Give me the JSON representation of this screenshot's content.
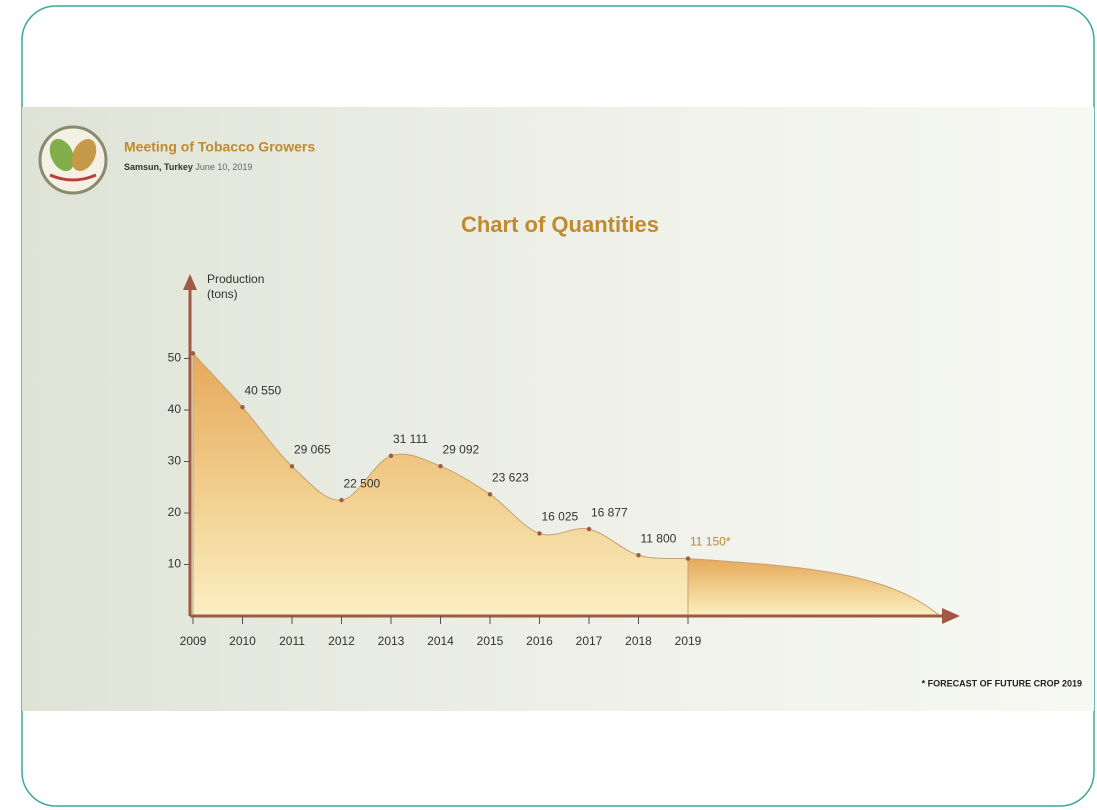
{
  "slide": {
    "heading": "Meeting of Tobacco Growers",
    "place": "Samsun, Turkey",
    "date": "June 10, 2019",
    "footnote": "* FORECAST OF FUTURE CROP 2019"
  },
  "chart_data": {
    "type": "area",
    "title": "Chart of Quantities",
    "ylabel": [
      "Production",
      "(tons)"
    ],
    "categories": [
      "2009",
      "2010",
      "2011",
      "2012",
      "2013",
      "2014",
      "2015",
      "2016",
      "2017",
      "2018",
      "2019"
    ],
    "values": [
      51,
      40.55,
      29.065,
      22.5,
      31.111,
      29.092,
      23.623,
      16.025,
      16.877,
      11.8,
      11.15
    ],
    "value_labels": [
      null,
      "40 550",
      "29 065",
      "22 500",
      "31 111",
      "29 092",
      "23 623",
      "16 025",
      "16 877",
      "11 800",
      "11 150*"
    ],
    "color": "#e8b86a",
    "ylim": [
      0,
      60
    ],
    "yticks": [
      10,
      20,
      30,
      40,
      50
    ]
  }
}
